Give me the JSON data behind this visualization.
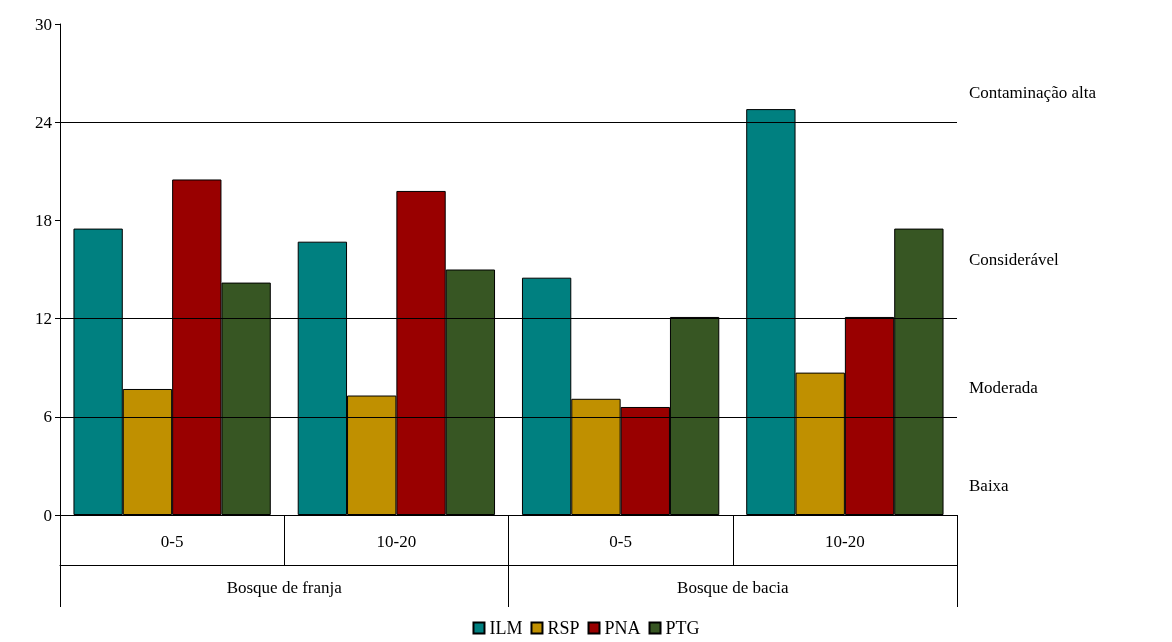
{
  "chart_data": {
    "type": "bar",
    "categories": [
      "0-5",
      "10-20",
      "0-5",
      "10-20"
    ],
    "series": [
      {
        "name": "ILM",
        "color": "#008080",
        "values": [
          17.5,
          16.7,
          14.5,
          24.8
        ]
      },
      {
        "name": "RSP",
        "color": "#c09000",
        "values": [
          7.7,
          7.3,
          7.1,
          8.7
        ]
      },
      {
        "name": "PNA",
        "color": "#990000",
        "values": [
          20.5,
          19.8,
          6.6,
          12.1
        ]
      },
      {
        "name": "PTG",
        "color": "#375623",
        "values": [
          14.2,
          15.0,
          12.1,
          17.5
        ]
      }
    ],
    "ylim": [
      0,
      30
    ],
    "yticks": [
      0,
      6,
      12,
      18,
      24,
      30
    ],
    "grid": false,
    "legend": "bottom",
    "ref_lines": [
      {
        "axis": "y",
        "value": 6
      },
      {
        "axis": "y",
        "value": 12
      },
      {
        "axis": "y",
        "value": 24
      }
    ],
    "annotations": [
      "Bosque de franja",
      "Bosque de bacia",
      "Baixa",
      "Moderada",
      "Considerável",
      "Contaminação alta"
    ]
  }
}
